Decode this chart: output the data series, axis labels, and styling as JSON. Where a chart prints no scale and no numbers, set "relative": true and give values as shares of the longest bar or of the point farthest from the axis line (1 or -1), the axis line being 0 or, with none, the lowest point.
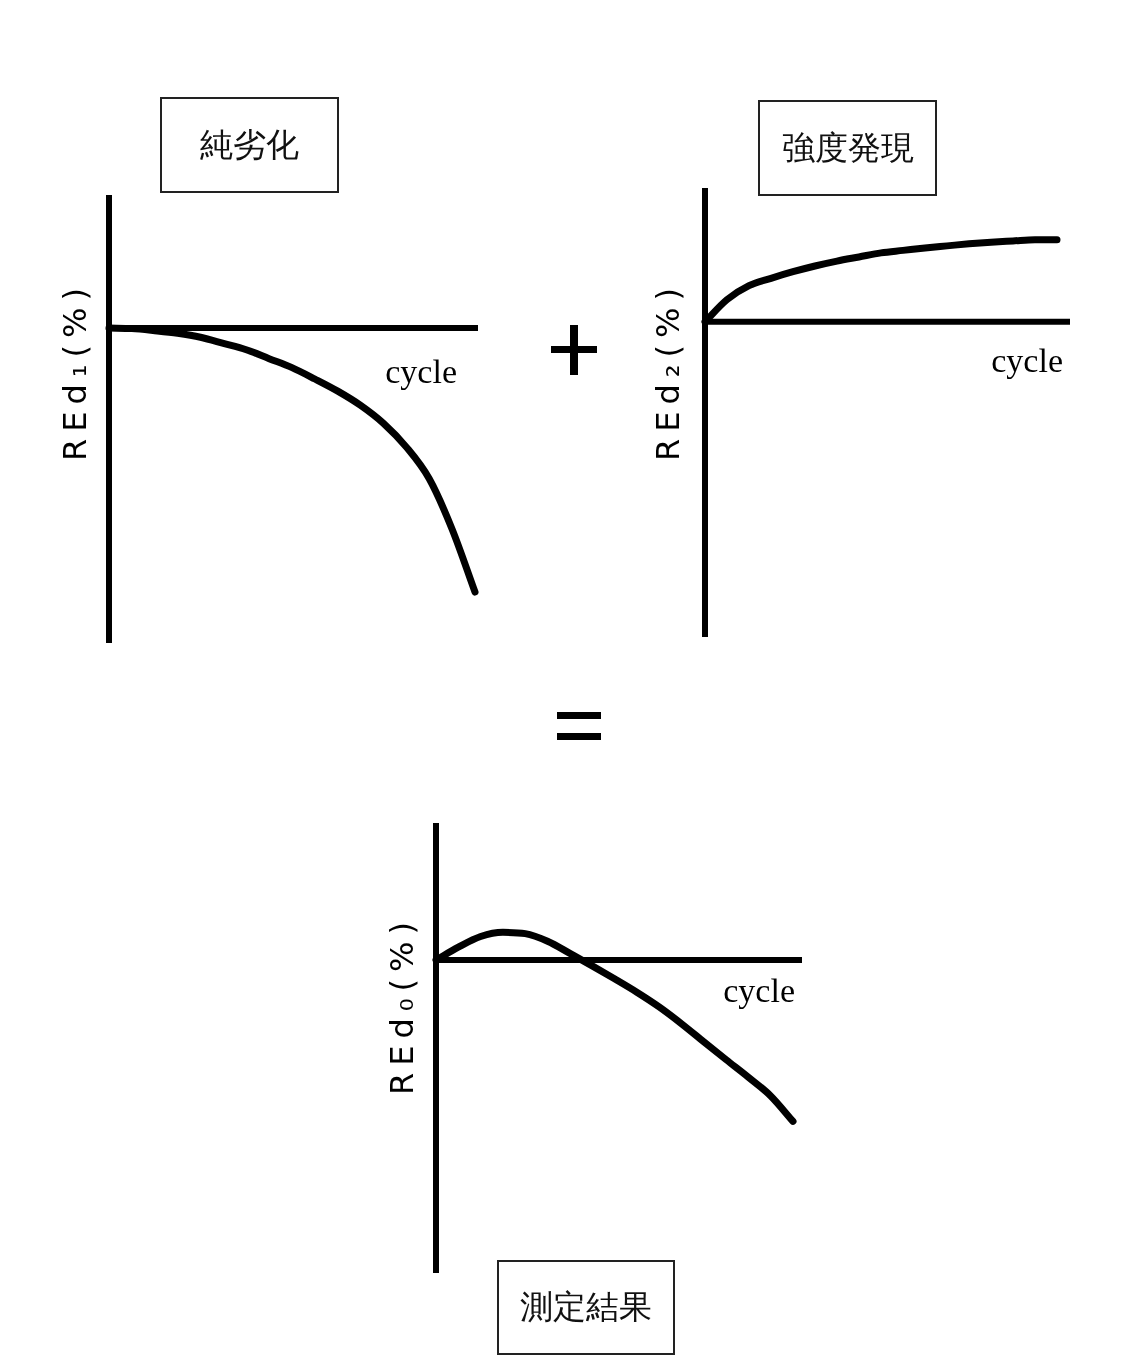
{
  "chart_data": [
    {
      "type": "line",
      "title": "純劣化",
      "xlabel": "cycle",
      "ylabel": "REd₁(%)",
      "relative": true,
      "categories": [
        null,
        null,
        null,
        null,
        null,
        null,
        null,
        null,
        null,
        null,
        null,
        null,
        null,
        null,
        null,
        null,
        null
      ],
      "series": [
        {
          "color": "#000000",
          "values": [
            0,
            -0.002,
            -0.01,
            -0.02,
            -0.035,
            -0.058,
            -0.082,
            -0.116,
            -0.15,
            -0.193,
            -0.239,
            -0.293,
            -0.361,
            -0.451,
            -0.571,
            -0.762,
            -1
          ]
        }
      ]
    },
    {
      "type": "line",
      "title": "強度発現",
      "xlabel": "cycle",
      "ylabel": "REd₂(%)",
      "relative": true,
      "categories": [
        null,
        null,
        null,
        null,
        null,
        null,
        null,
        null,
        null,
        null,
        null,
        null,
        null,
        null,
        null,
        null,
        null
      ],
      "series": [
        {
          "color": "#000000",
          "values": [
            0,
            0.27,
            0.44,
            0.53,
            0.61,
            0.68,
            0.74,
            0.79,
            0.84,
            0.87,
            0.9,
            0.925,
            0.95,
            0.97,
            0.985,
            1,
            1
          ]
        }
      ]
    },
    {
      "type": "line",
      "title": "測定結果",
      "xlabel": "cycle",
      "ylabel": "REd₀(%)",
      "relative": true,
      "categories": [
        null,
        null,
        null,
        null,
        null,
        null,
        null,
        null,
        null,
        null,
        null,
        null,
        null,
        null,
        null,
        null,
        null
      ],
      "series": [
        {
          "color": "#000000",
          "values": [
            0,
            0.08,
            0.146,
            0.172,
            0.164,
            0.117,
            0.042,
            -0.036,
            -0.116,
            -0.199,
            -0.29,
            -0.394,
            -0.506,
            -0.617,
            -0.726,
            -0.842,
            -1
          ]
        }
      ]
    }
  ]
}
